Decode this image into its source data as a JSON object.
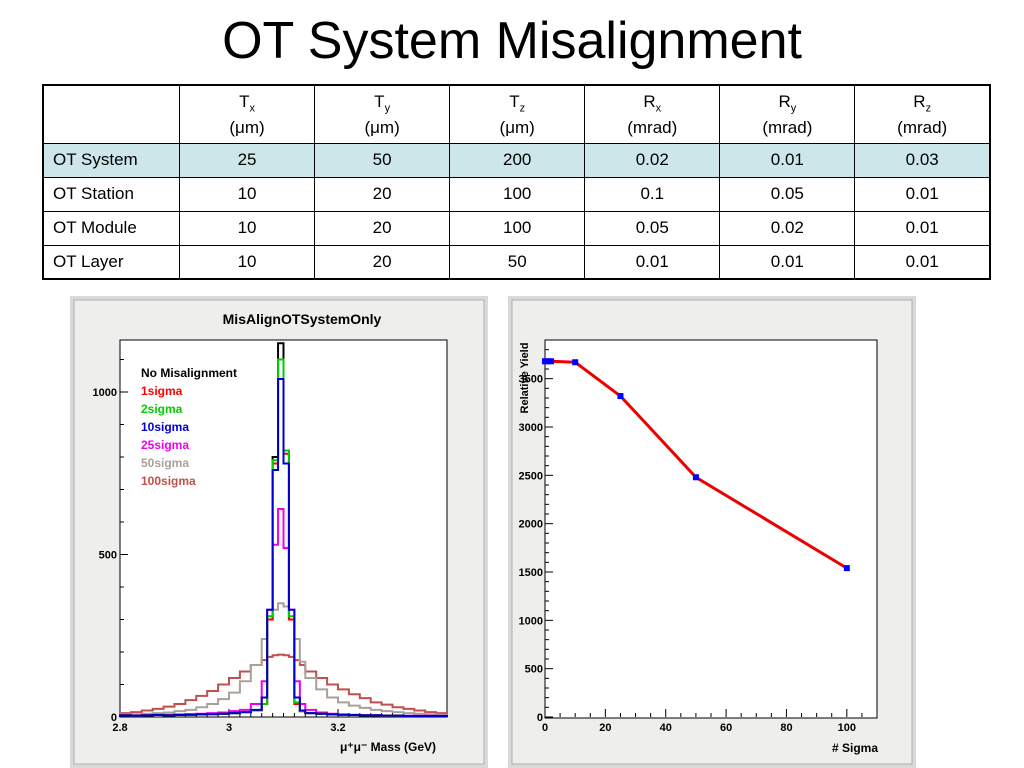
{
  "title": "OT System Misalignment",
  "table": {
    "columns": [
      {
        "sym": "T",
        "sub": "x",
        "unit": "(μm)"
      },
      {
        "sym": "T",
        "sub": "y",
        "unit": "(μm)"
      },
      {
        "sym": "T",
        "sub": "z",
        "unit": "(μm)"
      },
      {
        "sym": "R",
        "sub": "x",
        "unit": "(mrad)"
      },
      {
        "sym": "R",
        "sub": "y",
        "unit": "(mrad)"
      },
      {
        "sym": "R",
        "sub": "z",
        "unit": "(mrad)"
      }
    ],
    "rows": [
      {
        "label": "OT System",
        "values": [
          "25",
          "50",
          "200",
          "0.02",
          "0.01",
          "0.03"
        ]
      },
      {
        "label": "OT Station",
        "values": [
          "10",
          "20",
          "100",
          "0.1",
          "0.05",
          "0.01"
        ]
      },
      {
        "label": "OT Module",
        "values": [
          "10",
          "20",
          "100",
          "0.05",
          "0.02",
          "0.01"
        ]
      },
      {
        "label": "OT Layer",
        "values": [
          "10",
          "20",
          "50",
          "0.01",
          "0.01",
          "0.01"
        ]
      }
    ],
    "highlight_color": "#cce6ea"
  },
  "chart_data": [
    {
      "type": "line",
      "step": true,
      "title": "MisAlignOTSystemOnly",
      "xlabel": "μ⁺μ⁻ Mass (GeV)",
      "ylabel": "",
      "xlim": [
        2.8,
        3.4
      ],
      "ylim": [
        0,
        1160
      ],
      "xticks": [
        2.8,
        3,
        3.2
      ],
      "xtick_labels": [
        "2.8",
        "3",
        "3.2"
      ],
      "yticks": [
        0,
        500,
        1000
      ],
      "ytick_labels": [
        "0",
        "500",
        "1000"
      ],
      "legend_position": "top-left",
      "bin_edges": [
        2.8,
        2.82,
        2.84,
        2.86,
        2.88,
        2.9,
        2.92,
        2.94,
        2.96,
        2.98,
        3.0,
        3.02,
        3.04,
        3.06,
        3.07,
        3.08,
        3.09,
        3.1,
        3.11,
        3.12,
        3.13,
        3.14,
        3.16,
        3.18,
        3.2,
        3.22,
        3.24,
        3.26,
        3.28,
        3.3,
        3.32,
        3.34,
        3.36,
        3.38,
        3.4
      ],
      "series": [
        {
          "name": "No Misalignment",
          "color": "#000000",
          "values": [
            5,
            4,
            5,
            6,
            5,
            6,
            7,
            8,
            9,
            10,
            12,
            15,
            20,
            40,
            300,
            800,
            1150,
            820,
            300,
            40,
            18,
            12,
            10,
            8,
            7,
            6,
            5,
            5,
            4,
            4,
            3,
            3,
            3,
            3
          ]
        },
        {
          "name": "1sigma",
          "color": "#ff0000",
          "values": [
            5,
            4,
            5,
            6,
            5,
            6,
            7,
            8,
            9,
            10,
            12,
            15,
            20,
            40,
            300,
            780,
            1100,
            810,
            300,
            40,
            18,
            12,
            10,
            8,
            7,
            6,
            5,
            5,
            4,
            4,
            3,
            3,
            3,
            3
          ]
        },
        {
          "name": "2sigma",
          "color": "#00cc00",
          "values": [
            5,
            4,
            5,
            6,
            5,
            6,
            7,
            8,
            9,
            10,
            12,
            15,
            20,
            40,
            310,
            790,
            1100,
            820,
            310,
            45,
            18,
            12,
            10,
            8,
            7,
            6,
            5,
            5,
            4,
            4,
            3,
            3,
            3,
            3
          ]
        },
        {
          "name": "10sigma",
          "color": "#0000cc",
          "values": [
            5,
            4,
            5,
            6,
            5,
            6,
            7,
            8,
            9,
            10,
            12,
            15,
            22,
            60,
            330,
            760,
            1040,
            780,
            330,
            60,
            20,
            12,
            10,
            8,
            7,
            6,
            5,
            5,
            4,
            4,
            3,
            3,
            3,
            3
          ]
        },
        {
          "name": "25sigma",
          "color": "#ee00ee",
          "values": [
            6,
            5,
            6,
            7,
            7,
            8,
            9,
            10,
            12,
            14,
            18,
            22,
            40,
            110,
            330,
            530,
            640,
            520,
            330,
            110,
            40,
            22,
            14,
            10,
            8,
            7,
            6,
            6,
            5,
            5,
            4,
            4,
            4,
            4
          ]
        },
        {
          "name": "50sigma",
          "color": "#aaa09a",
          "values": [
            8,
            8,
            10,
            12,
            14,
            18,
            22,
            30,
            40,
            55,
            75,
            110,
            160,
            240,
            300,
            330,
            350,
            340,
            300,
            240,
            170,
            120,
            85,
            60,
            45,
            35,
            28,
            22,
            18,
            15,
            12,
            10,
            8,
            7
          ]
        },
        {
          "name": "100sigma",
          "color": "#c0504d",
          "values": [
            12,
            15,
            20,
            25,
            32,
            40,
            52,
            65,
            80,
            100,
            120,
            140,
            160,
            175,
            185,
            190,
            192,
            190,
            185,
            175,
            160,
            140,
            120,
            100,
            85,
            70,
            58,
            45,
            38,
            30,
            25,
            20,
            15,
            12
          ]
        }
      ]
    },
    {
      "type": "line",
      "title": "",
      "xlabel": "# Sigma",
      "ylabel": "Relative Yield",
      "xlim": [
        0,
        110
      ],
      "ylim": [
        0,
        3900
      ],
      "xticks": [
        0,
        20,
        40,
        60,
        80,
        100
      ],
      "xtick_labels": [
        "0",
        "20",
        "40",
        "60",
        "80",
        "100"
      ],
      "yticks": [
        0,
        500,
        1000,
        1500,
        2000,
        2500,
        3000,
        3500
      ],
      "ytick_labels": [
        "0",
        "500",
        "1000",
        "1500",
        "2000",
        "2500",
        "3000",
        "3500"
      ],
      "line_color": "#ee0000",
      "marker_color": "#0000ff",
      "x": [
        0,
        1,
        2,
        10,
        25,
        50,
        100
      ],
      "y": [
        3680,
        3680,
        3680,
        3670,
        3320,
        2480,
        1540
      ]
    }
  ]
}
